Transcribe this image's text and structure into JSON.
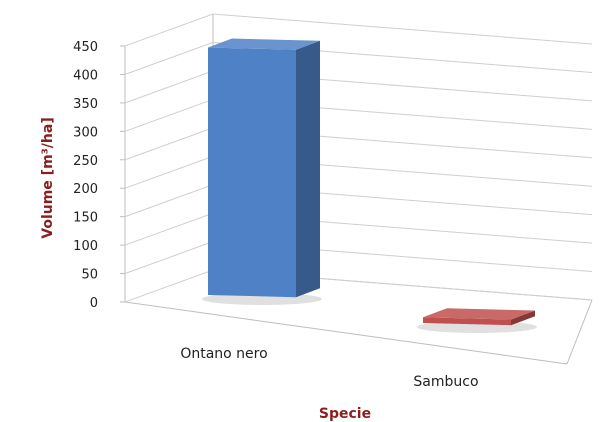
{
  "chart_data": {
    "type": "bar",
    "categories": [
      "Ontano nero",
      "Sambuco"
    ],
    "values": [
      435,
      10
    ],
    "xlabel": "Specie",
    "ylabel": "Volume [m³/ha]",
    "ylim": [
      0,
      450
    ],
    "yticks": [
      0,
      50,
      100,
      150,
      200,
      250,
      300,
      350,
      400,
      450
    ],
    "grid": true,
    "legend": "none",
    "colors": [
      "#4f81c7",
      "#c0504d"
    ]
  }
}
